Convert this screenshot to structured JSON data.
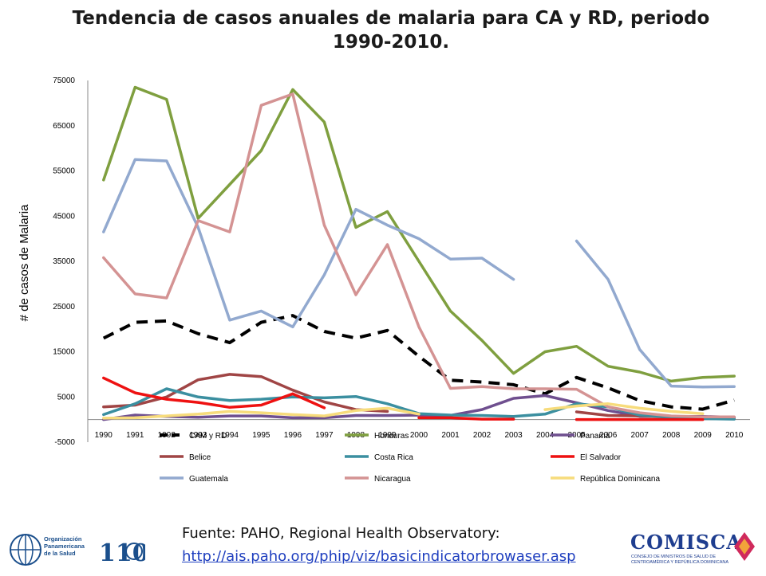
{
  "chart_data": {
    "type": "line",
    "title": "Tendencia de casos anuales de malaria para CA y RD, periodo 1990-2010.",
    "xlabel": "",
    "ylabel": "# de casos de Malaria",
    "ylim": [
      -5000,
      75000
    ],
    "yticks": [
      -5000,
      5000,
      15000,
      25000,
      35000,
      45000,
      55000,
      65000,
      75000
    ],
    "x": [
      1990,
      1991,
      1992,
      1993,
      1994,
      1995,
      1996,
      1997,
      1998,
      1999,
      2000,
      2001,
      2002,
      2003,
      2004,
      2005,
      2006,
      2007,
      2008,
      2009,
      2010
    ],
    "legend_placement": "bottom",
    "series": [
      {
        "name": "CAM y RD",
        "color": "#000000",
        "dashed": true,
        "values": [
          18000,
          21500,
          21800,
          19000,
          17000,
          21500,
          23000,
          19500,
          18000,
          19700,
          14000,
          8700,
          8300,
          7700,
          5700,
          9300,
          7000,
          4200,
          2800,
          2300,
          4300
        ]
      },
      {
        "name": "Honduras",
        "color": "#7f9f3f",
        "values": [
          53000,
          73500,
          70800,
          44500,
          52000,
          59500,
          73000,
          65800,
          42500,
          46000,
          35000,
          24000,
          17500,
          10200,
          15000,
          16200,
          11800,
          10500,
          8500,
          9300,
          9600
        ]
      },
      {
        "name": "Panamá",
        "color": "#6f4f8f",
        "values": [
          0,
          1000,
          700,
          500,
          800,
          800,
          400,
          400,
          900,
          900,
          1000,
          900,
          2200,
          4700,
          5300,
          3700,
          2000,
          700,
          700,
          700,
          500
        ]
      },
      {
        "name": "Belice",
        "color": "#a04545",
        "values": [
          2800,
          3200,
          5000,
          8800,
          10000,
          9500,
          6500,
          3900,
          2200,
          1800,
          null,
          null,
          null,
          null,
          null,
          1700,
          900,
          800,
          500,
          200,
          200
        ]
      },
      {
        "name": "Costa Rica",
        "color": "#3b8fa0",
        "values": [
          1100,
          3500,
          6800,
          5000,
          4200,
          4500,
          5000,
          4800,
          5100,
          3500,
          1300,
          1000,
          900,
          700,
          1200,
          3500,
          2800,
          1000,
          500,
          200,
          100
        ]
      },
      {
        "name": "El Salvador",
        "color": "#ee1111",
        "values": [
          9200,
          5900,
          4500,
          3800,
          2700,
          3200,
          5700,
          2600,
          null,
          null,
          400,
          400,
          100,
          100,
          null,
          0,
          0,
          0,
          0,
          0,
          null
        ]
      },
      {
        "name": "Guatemala",
        "color": "#92a9cf",
        "values": [
          41500,
          57500,
          57200,
          42500,
          22000,
          24000,
          20500,
          32000,
          46500,
          43000,
          40000,
          35500,
          35700,
          31000,
          null,
          39500,
          31000,
          15500,
          7400,
          7200,
          7300
        ]
      },
      {
        "name": "Nicaragua",
        "color": "#d49393",
        "values": [
          35800,
          27800,
          26900,
          44000,
          41500,
          69500,
          72000,
          43000,
          27600,
          38700,
          20500,
          6900,
          7300,
          6800,
          6800,
          6700,
          2800,
          1500,
          800,
          600,
          600
        ]
      },
      {
        "name": "República Dominicana",
        "color": "#f7dc7c",
        "values": [
          300,
          400,
          800,
          1200,
          1800,
          1500,
          1100,
          800,
          2000,
          2500,
          1200,
          null,
          null,
          null,
          2200,
          3000,
          3500,
          2500,
          1800,
          1300,
          null
        ]
      }
    ]
  },
  "source": {
    "label": "Fuente: PAHO, Regional Health Observatory:",
    "url_text": "http://ais.paho.org/phip/viz/basicindicatorbrowaser.asp"
  },
  "logos": {
    "paho_lines": [
      "Organización",
      "Panamericana",
      "de la Salud"
    ],
    "anniversary_number": "110",
    "comisca_word": "COMISCA",
    "comisca_sub": "CONSEJO DE MINISTROS DE SALUD DE CENTROAMÉRICA Y REPÚBLICA DOMINICANA",
    "paho_blue": "#1b4f8c",
    "comisca_blue": "#1e3d8f"
  }
}
